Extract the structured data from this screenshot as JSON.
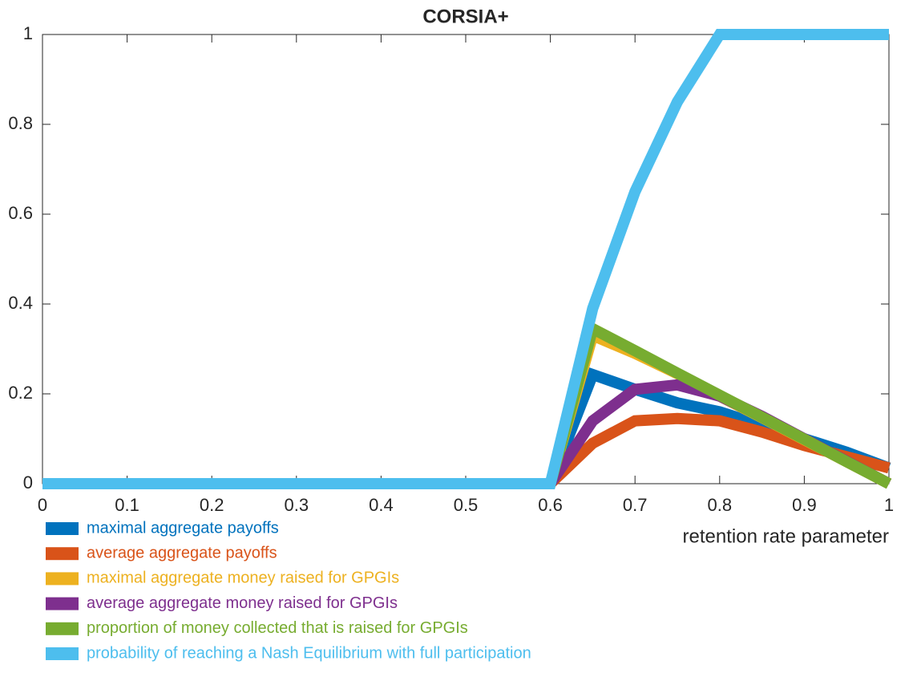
{
  "chart_data": {
    "type": "line",
    "title": "CORSIA+",
    "xlabel": "retention rate parameter",
    "x": [
      0,
      0.05,
      0.1,
      0.15,
      0.2,
      0.25,
      0.3,
      0.35,
      0.4,
      0.45,
      0.5,
      0.55,
      0.6,
      0.65,
      0.7,
      0.75,
      0.8,
      0.85,
      0.9,
      0.95,
      1
    ],
    "xlim": [
      0,
      1
    ],
    "xticks": [
      0,
      0.1,
      0.2,
      0.3,
      0.4,
      0.5,
      0.6,
      0.7,
      0.8,
      0.9,
      1
    ],
    "ylim": [
      0,
      1
    ],
    "yticks": [
      0,
      0.2,
      0.4,
      0.6,
      0.8,
      1
    ],
    "series": [
      {
        "name": "maximal aggregate payoffs",
        "color": "#0072bd",
        "values": [
          0,
          0,
          0,
          0,
          0,
          0,
          0,
          0,
          0,
          0,
          0,
          0,
          0,
          0.243,
          0.21,
          0.18,
          0.16,
          0.13,
          0.1,
          0.07,
          0.035
        ]
      },
      {
        "name": "average aggregate payoffs",
        "color": "#d95319",
        "values": [
          0,
          0,
          0,
          0,
          0,
          0,
          0,
          0,
          0,
          0,
          0,
          0,
          0,
          0.09,
          0.14,
          0.145,
          0.14,
          0.115,
          0.085,
          0.06,
          0.035
        ]
      },
      {
        "name": "maximal aggregate money raised for GPGIs",
        "color": "#edb120",
        "values": [
          0,
          0,
          0,
          0,
          0,
          0,
          0,
          0,
          0,
          0,
          0,
          0,
          0,
          0.33,
          0.29,
          0.245,
          0.195,
          0.147,
          0.098,
          0.049,
          0
        ]
      },
      {
        "name": "average aggregate money raised for GPGIs",
        "color": "#7e2f8e",
        "values": [
          0,
          0,
          0,
          0,
          0,
          0,
          0,
          0,
          0,
          0,
          0,
          0,
          0,
          0.14,
          0.21,
          0.22,
          0.195,
          0.15,
          0.1,
          0.05,
          0
        ]
      },
      {
        "name": "proportion of money collected that is raised for GPGIs",
        "color": "#77ac30",
        "values": [
          0,
          0,
          0,
          0,
          0,
          0,
          0,
          0,
          0,
          0,
          0,
          0,
          0,
          0.345,
          0.296,
          0.246,
          0.197,
          0.148,
          0.099,
          0.049,
          0
        ]
      },
      {
        "name": "probability of reaching a Nash Equilibrium with full participation",
        "color": "#4dbeee",
        "values": [
          0,
          0,
          0,
          0,
          0,
          0,
          0,
          0,
          0,
          0,
          0,
          0,
          0,
          0.39,
          0.65,
          0.85,
          1,
          1,
          1,
          1,
          1
        ]
      }
    ]
  }
}
